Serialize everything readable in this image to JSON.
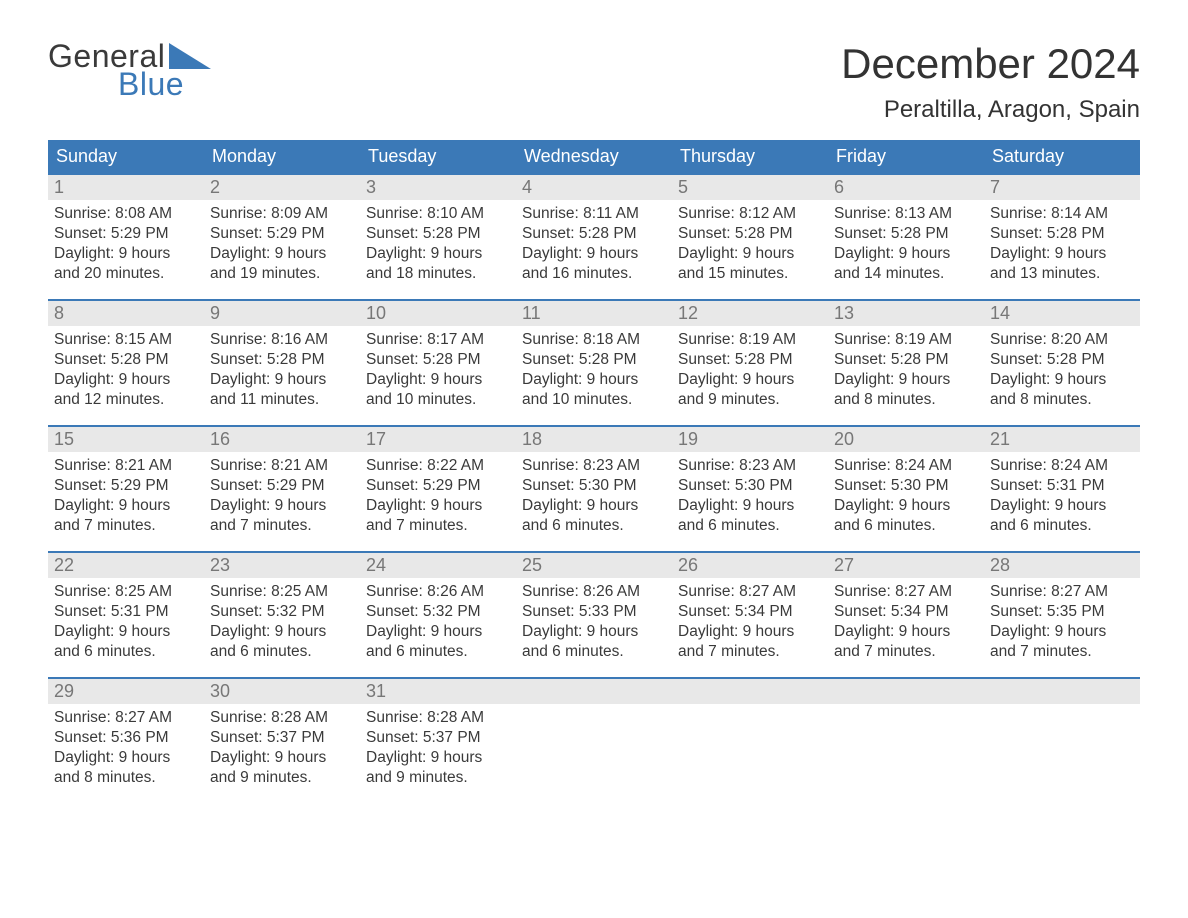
{
  "brand": {
    "word1": "General",
    "word2": "Blue"
  },
  "title": "December 2024",
  "location": "Peraltilla, Aragon, Spain",
  "colors": {
    "header_bg": "#3b79b7",
    "header_text": "#ffffff",
    "daynum_bg": "#e8e8e8",
    "daynum_text": "#777777",
    "body_text": "#3a3a3a",
    "rule": "#3b79b7",
    "page_bg": "#ffffff"
  },
  "fonts": {
    "family": "Arial",
    "title_size_pt": 32,
    "location_size_pt": 18,
    "dow_size_pt": 14,
    "daynum_size_pt": 14,
    "body_size_pt": 12
  },
  "days_of_week": [
    "Sunday",
    "Monday",
    "Tuesday",
    "Wednesday",
    "Thursday",
    "Friday",
    "Saturday"
  ],
  "weeks": [
    [
      {
        "n": "1",
        "sunrise": "Sunrise: 8:08 AM",
        "sunset": "Sunset: 5:29 PM",
        "dl1": "Daylight: 9 hours",
        "dl2": "and 20 minutes."
      },
      {
        "n": "2",
        "sunrise": "Sunrise: 8:09 AM",
        "sunset": "Sunset: 5:29 PM",
        "dl1": "Daylight: 9 hours",
        "dl2": "and 19 minutes."
      },
      {
        "n": "3",
        "sunrise": "Sunrise: 8:10 AM",
        "sunset": "Sunset: 5:28 PM",
        "dl1": "Daylight: 9 hours",
        "dl2": "and 18 minutes."
      },
      {
        "n": "4",
        "sunrise": "Sunrise: 8:11 AM",
        "sunset": "Sunset: 5:28 PM",
        "dl1": "Daylight: 9 hours",
        "dl2": "and 16 minutes."
      },
      {
        "n": "5",
        "sunrise": "Sunrise: 8:12 AM",
        "sunset": "Sunset: 5:28 PM",
        "dl1": "Daylight: 9 hours",
        "dl2": "and 15 minutes."
      },
      {
        "n": "6",
        "sunrise": "Sunrise: 8:13 AM",
        "sunset": "Sunset: 5:28 PM",
        "dl1": "Daylight: 9 hours",
        "dl2": "and 14 minutes."
      },
      {
        "n": "7",
        "sunrise": "Sunrise: 8:14 AM",
        "sunset": "Sunset: 5:28 PM",
        "dl1": "Daylight: 9 hours",
        "dl2": "and 13 minutes."
      }
    ],
    [
      {
        "n": "8",
        "sunrise": "Sunrise: 8:15 AM",
        "sunset": "Sunset: 5:28 PM",
        "dl1": "Daylight: 9 hours",
        "dl2": "and 12 minutes."
      },
      {
        "n": "9",
        "sunrise": "Sunrise: 8:16 AM",
        "sunset": "Sunset: 5:28 PM",
        "dl1": "Daylight: 9 hours",
        "dl2": "and 11 minutes."
      },
      {
        "n": "10",
        "sunrise": "Sunrise: 8:17 AM",
        "sunset": "Sunset: 5:28 PM",
        "dl1": "Daylight: 9 hours",
        "dl2": "and 10 minutes."
      },
      {
        "n": "11",
        "sunrise": "Sunrise: 8:18 AM",
        "sunset": "Sunset: 5:28 PM",
        "dl1": "Daylight: 9 hours",
        "dl2": "and 10 minutes."
      },
      {
        "n": "12",
        "sunrise": "Sunrise: 8:19 AM",
        "sunset": "Sunset: 5:28 PM",
        "dl1": "Daylight: 9 hours",
        "dl2": "and 9 minutes."
      },
      {
        "n": "13",
        "sunrise": "Sunrise: 8:19 AM",
        "sunset": "Sunset: 5:28 PM",
        "dl1": "Daylight: 9 hours",
        "dl2": "and 8 minutes."
      },
      {
        "n": "14",
        "sunrise": "Sunrise: 8:20 AM",
        "sunset": "Sunset: 5:28 PM",
        "dl1": "Daylight: 9 hours",
        "dl2": "and 8 minutes."
      }
    ],
    [
      {
        "n": "15",
        "sunrise": "Sunrise: 8:21 AM",
        "sunset": "Sunset: 5:29 PM",
        "dl1": "Daylight: 9 hours",
        "dl2": "and 7 minutes."
      },
      {
        "n": "16",
        "sunrise": "Sunrise: 8:21 AM",
        "sunset": "Sunset: 5:29 PM",
        "dl1": "Daylight: 9 hours",
        "dl2": "and 7 minutes."
      },
      {
        "n": "17",
        "sunrise": "Sunrise: 8:22 AM",
        "sunset": "Sunset: 5:29 PM",
        "dl1": "Daylight: 9 hours",
        "dl2": "and 7 minutes."
      },
      {
        "n": "18",
        "sunrise": "Sunrise: 8:23 AM",
        "sunset": "Sunset: 5:30 PM",
        "dl1": "Daylight: 9 hours",
        "dl2": "and 6 minutes."
      },
      {
        "n": "19",
        "sunrise": "Sunrise: 8:23 AM",
        "sunset": "Sunset: 5:30 PM",
        "dl1": "Daylight: 9 hours",
        "dl2": "and 6 minutes."
      },
      {
        "n": "20",
        "sunrise": "Sunrise: 8:24 AM",
        "sunset": "Sunset: 5:30 PM",
        "dl1": "Daylight: 9 hours",
        "dl2": "and 6 minutes."
      },
      {
        "n": "21",
        "sunrise": "Sunrise: 8:24 AM",
        "sunset": "Sunset: 5:31 PM",
        "dl1": "Daylight: 9 hours",
        "dl2": "and 6 minutes."
      }
    ],
    [
      {
        "n": "22",
        "sunrise": "Sunrise: 8:25 AM",
        "sunset": "Sunset: 5:31 PM",
        "dl1": "Daylight: 9 hours",
        "dl2": "and 6 minutes."
      },
      {
        "n": "23",
        "sunrise": "Sunrise: 8:25 AM",
        "sunset": "Sunset: 5:32 PM",
        "dl1": "Daylight: 9 hours",
        "dl2": "and 6 minutes."
      },
      {
        "n": "24",
        "sunrise": "Sunrise: 8:26 AM",
        "sunset": "Sunset: 5:32 PM",
        "dl1": "Daylight: 9 hours",
        "dl2": "and 6 minutes."
      },
      {
        "n": "25",
        "sunrise": "Sunrise: 8:26 AM",
        "sunset": "Sunset: 5:33 PM",
        "dl1": "Daylight: 9 hours",
        "dl2": "and 6 minutes."
      },
      {
        "n": "26",
        "sunrise": "Sunrise: 8:27 AM",
        "sunset": "Sunset: 5:34 PM",
        "dl1": "Daylight: 9 hours",
        "dl2": "and 7 minutes."
      },
      {
        "n": "27",
        "sunrise": "Sunrise: 8:27 AM",
        "sunset": "Sunset: 5:34 PM",
        "dl1": "Daylight: 9 hours",
        "dl2": "and 7 minutes."
      },
      {
        "n": "28",
        "sunrise": "Sunrise: 8:27 AM",
        "sunset": "Sunset: 5:35 PM",
        "dl1": "Daylight: 9 hours",
        "dl2": "and 7 minutes."
      }
    ],
    [
      {
        "n": "29",
        "sunrise": "Sunrise: 8:27 AM",
        "sunset": "Sunset: 5:36 PM",
        "dl1": "Daylight: 9 hours",
        "dl2": "and 8 minutes."
      },
      {
        "n": "30",
        "sunrise": "Sunrise: 8:28 AM",
        "sunset": "Sunset: 5:37 PM",
        "dl1": "Daylight: 9 hours",
        "dl2": "and 9 minutes."
      },
      {
        "n": "31",
        "sunrise": "Sunrise: 8:28 AM",
        "sunset": "Sunset: 5:37 PM",
        "dl1": "Daylight: 9 hours",
        "dl2": "and 9 minutes."
      },
      {
        "empty": true
      },
      {
        "empty": true
      },
      {
        "empty": true
      },
      {
        "empty": true
      }
    ]
  ]
}
